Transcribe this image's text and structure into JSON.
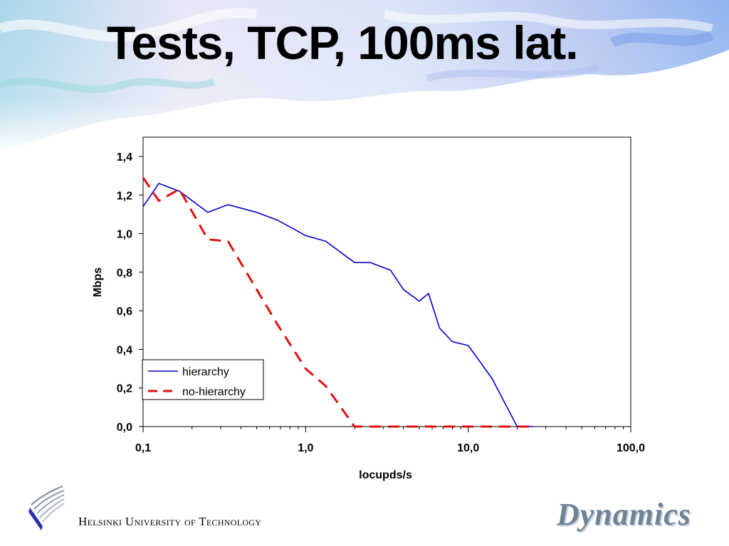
{
  "slide": {
    "title": "Tests, TCP, 100ms lat.",
    "footer": "Helsinki University of Technology",
    "brand_logo_text": "Dynamics"
  },
  "chart_data": {
    "type": "line",
    "title": "",
    "xlabel": "locupds/s",
    "ylabel": "Mbps",
    "x_scale": "log",
    "xlim": [
      0.1,
      100
    ],
    "ylim": [
      0,
      1.4
    ],
    "x_ticks": [
      "0,1",
      "1,0",
      "10,0",
      "100,0"
    ],
    "y_ticks": [
      "0,0",
      "0,2",
      "0,4",
      "0,6",
      "0,8",
      "1,0",
      "1,2",
      "1,4"
    ],
    "legend_position": "bottom-left",
    "grid": false,
    "series": [
      {
        "name": "hierarchy",
        "color": "#0000cc",
        "style": "solid",
        "points": [
          [
            0.1,
            1.14
          ],
          [
            0.125,
            1.26
          ],
          [
            0.167,
            1.22
          ],
          [
            0.25,
            1.11
          ],
          [
            0.333,
            1.15
          ],
          [
            0.5,
            1.11
          ],
          [
            0.67,
            1.07
          ],
          [
            1.0,
            0.99
          ],
          [
            1.33,
            0.96
          ],
          [
            2.0,
            0.85
          ],
          [
            2.5,
            0.85
          ],
          [
            3.33,
            0.81
          ],
          [
            4.0,
            0.71
          ],
          [
            5.0,
            0.65
          ],
          [
            5.7,
            0.69
          ],
          [
            6.67,
            0.51
          ],
          [
            8.0,
            0.44
          ],
          [
            10.0,
            0.42
          ],
          [
            14.0,
            0.25
          ],
          [
            20.0,
            0.0
          ],
          [
            25.0,
            0.0
          ]
        ]
      },
      {
        "name": "no-hierarchy",
        "color": "#e01010",
        "style": "dashed",
        "points": [
          [
            0.1,
            1.29
          ],
          [
            0.125,
            1.17
          ],
          [
            0.167,
            1.23
          ],
          [
            0.25,
            0.97
          ],
          [
            0.333,
            0.96
          ],
          [
            0.5,
            0.71
          ],
          [
            0.67,
            0.53
          ],
          [
            1.0,
            0.3
          ],
          [
            1.33,
            0.21
          ],
          [
            2.0,
            0.0
          ],
          [
            3.0,
            0.0
          ],
          [
            5.0,
            0.0
          ],
          [
            10.0,
            0.0
          ],
          [
            25.0,
            0.0
          ]
        ]
      }
    ]
  }
}
